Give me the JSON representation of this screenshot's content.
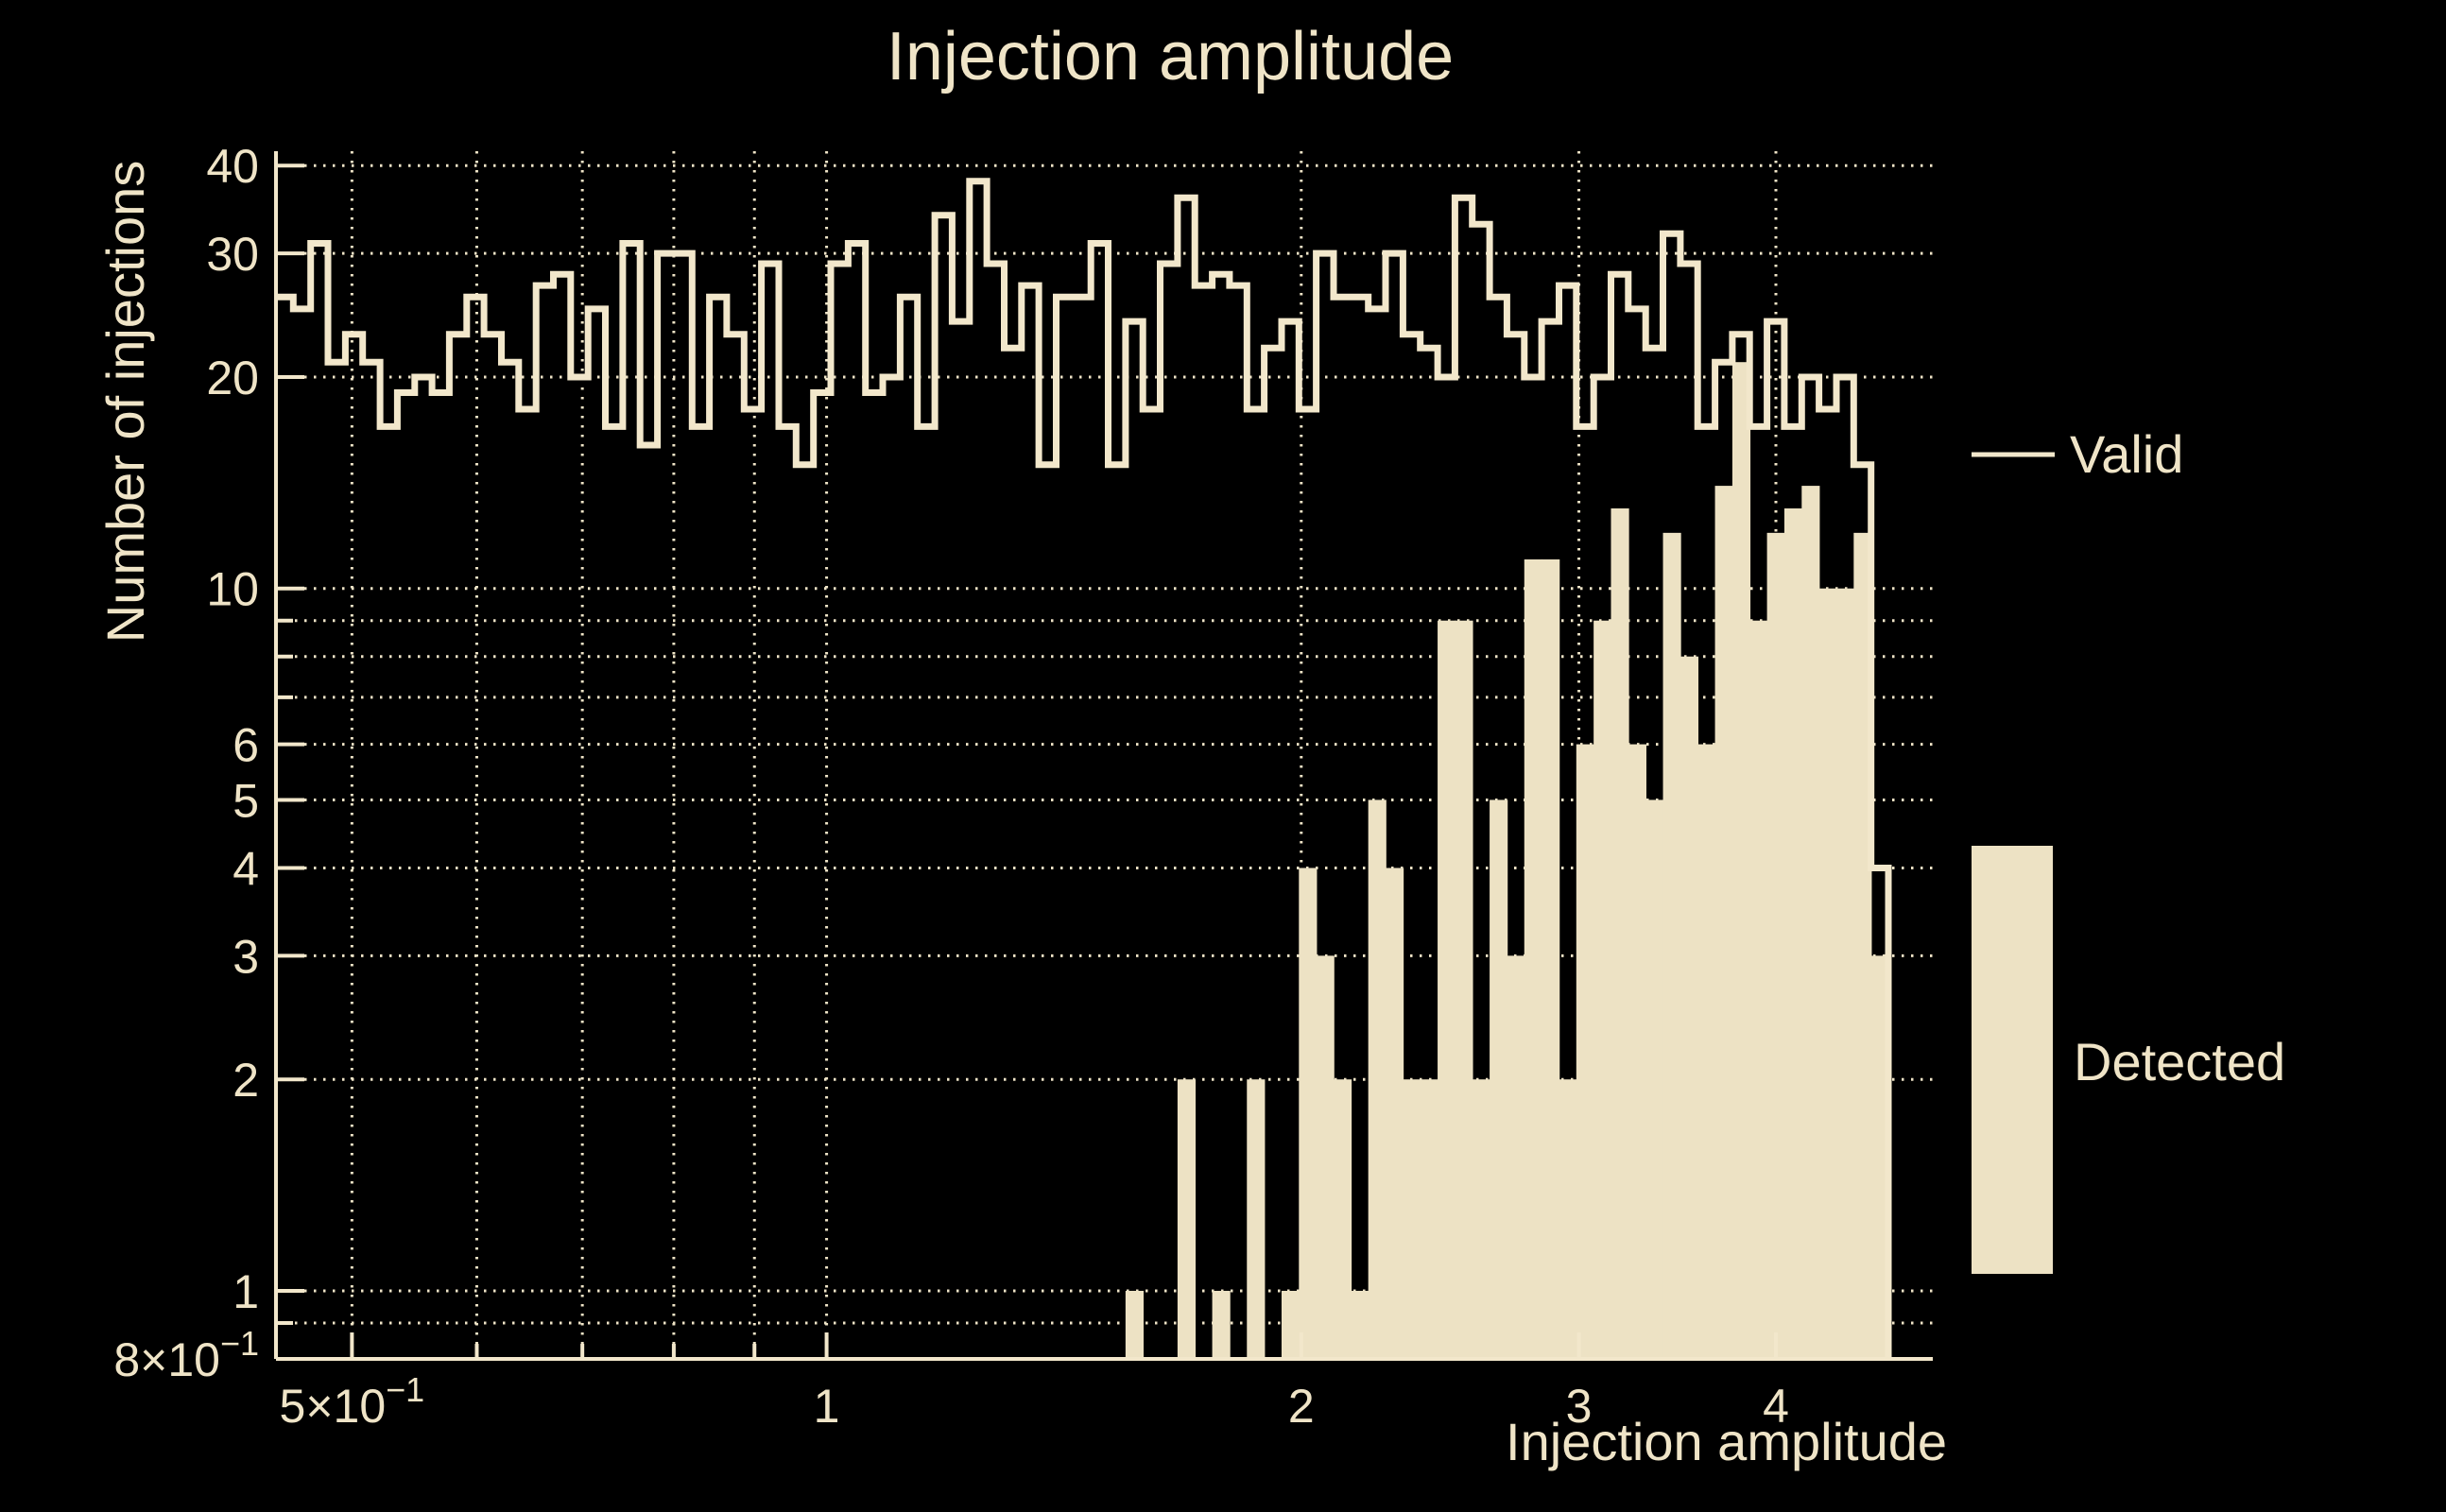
{
  "title": "Injection amplitude",
  "axes": {
    "x_label": "Injection amplitude",
    "y_label": "Number of injections",
    "x_tick_labels": [
      {
        "value": 0.5,
        "label": "5×10",
        "sup": "−1"
      },
      {
        "value": 1,
        "label": "1"
      },
      {
        "value": 2,
        "label": "2"
      },
      {
        "value": 3,
        "label": "3"
      },
      {
        "value": 4,
        "label": "4"
      }
    ],
    "y_tick_labels": [
      {
        "value": 40,
        "label": "40"
      },
      {
        "value": 30,
        "label": "30"
      },
      {
        "value": 20,
        "label": "20"
      },
      {
        "value": 10,
        "label": "10"
      },
      {
        "value": 6,
        "label": "6"
      },
      {
        "value": 5,
        "label": "5"
      },
      {
        "value": 4,
        "label": "4"
      },
      {
        "value": 3,
        "label": "3"
      },
      {
        "value": 2,
        "label": "2"
      },
      {
        "value": 1,
        "label": "1"
      },
      {
        "value": 0.8,
        "label": "8×10",
        "sup": "−1"
      }
    ],
    "x_gridlines": [
      0.5,
      0.6,
      0.7,
      0.8,
      0.9,
      1,
      2,
      3,
      4
    ],
    "y_gridlines": [
      0.9,
      1,
      2,
      3,
      4,
      5,
      6,
      7,
      8,
      9,
      10,
      20,
      30,
      40
    ],
    "x_range": [
      0.4475,
      5.03
    ],
    "y_range": [
      0.8,
      41.93
    ],
    "x_scale": "log",
    "y_scale": "log"
  },
  "legend": {
    "valid_label": "Valid",
    "detected_label": "Detected"
  },
  "colors": {
    "background": "#000000",
    "line": "#F2E7CB",
    "fill": "#EDE2C4",
    "text": "#EFE4C7",
    "grid": "#EFE4C7"
  },
  "chart_data": {
    "type": "bar",
    "title": "Injection amplitude",
    "xlabel": "Injection amplitude",
    "ylabel": "Number of injections",
    "x_scale": "log",
    "y_scale": "log",
    "xlim": [
      0.4475,
      5.03
    ],
    "ylim": [
      0.8,
      41.93
    ],
    "grid": true,
    "legend_position": "right",
    "bins": {
      "start": 0.4475,
      "ratio": 1.02565,
      "count": 93
    },
    "series": [
      {
        "name": "Valid",
        "style": "step-outline",
        "values": [
          26,
          25,
          31,
          21,
          23,
          21,
          17,
          19,
          20,
          19,
          23,
          26,
          23,
          21,
          18,
          27,
          28,
          20,
          25,
          17,
          31,
          16,
          30,
          30,
          17,
          26,
          23,
          18,
          29,
          17,
          15,
          19,
          29,
          31,
          19,
          20,
          26,
          17,
          34,
          24,
          38,
          29,
          22,
          27,
          15,
          26,
          26,
          31,
          15,
          24,
          18,
          29,
          36,
          27,
          28,
          27,
          18,
          22,
          24,
          18,
          30,
          26,
          26,
          25,
          30,
          23,
          22,
          20,
          36,
          33,
          26,
          23,
          20,
          24,
          27,
          17,
          20,
          28,
          25,
          22,
          32,
          29,
          17,
          21,
          23,
          17,
          24,
          17,
          20,
          18,
          20,
          15,
          4
        ]
      },
      {
        "name": "Detected",
        "style": "filled-bar",
        "values": [
          0,
          0,
          0,
          0,
          0,
          0,
          0,
          0,
          0,
          0,
          0,
          0,
          0,
          0,
          0,
          0,
          0,
          0,
          0,
          0,
          0,
          0,
          0,
          0,
          0,
          0,
          0,
          0,
          0,
          0,
          0,
          0,
          0,
          0,
          0,
          0,
          0,
          0,
          0,
          0,
          0,
          0,
          0,
          0,
          0,
          0,
          0,
          0,
          0,
          1,
          0,
          0,
          2,
          0,
          1,
          0,
          2,
          0,
          1,
          4,
          3,
          2,
          1,
          5,
          4,
          2,
          2,
          9,
          9,
          2,
          5,
          3,
          11,
          11,
          2,
          6,
          9,
          13,
          6,
          5,
          12,
          8,
          6,
          14,
          21,
          9,
          12,
          13,
          14,
          10,
          10,
          12,
          3
        ]
      }
    ]
  }
}
